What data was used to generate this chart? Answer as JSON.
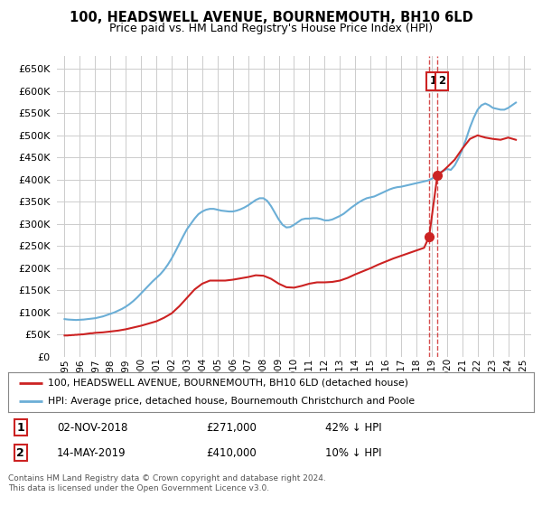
{
  "title": "100, HEADSWELL AVENUE, BOURNEMOUTH, BH10 6LD",
  "subtitle": "Price paid vs. HM Land Registry's House Price Index (HPI)",
  "legend1": "100, HEADSWELL AVENUE, BOURNEMOUTH, BH10 6LD (detached house)",
  "legend2": "HPI: Average price, detached house, Bournemouth Christchurch and Poole",
  "annotation1_date": "02-NOV-2018",
  "annotation1_price": "£271,000",
  "annotation1_hpi": "42% ↓ HPI",
  "annotation2_date": "14-MAY-2019",
  "annotation2_price": "£410,000",
  "annotation2_hpi": "10% ↓ HPI",
  "footer": "Contains HM Land Registry data © Crown copyright and database right 2024.\nThis data is licensed under the Open Government Licence v3.0.",
  "hpi_color": "#6baed6",
  "price_color": "#cc2222",
  "annotation_box_color": "#cc2222",
  "background_color": "#ffffff",
  "grid_color": "#cccccc",
  "ylim": [
    0,
    680000
  ],
  "yticks": [
    0,
    50000,
    100000,
    150000,
    200000,
    250000,
    300000,
    350000,
    400000,
    450000,
    500000,
    550000,
    600000,
    650000
  ],
  "xlabel_years": [
    "1995",
    "1996",
    "1997",
    "1998",
    "1999",
    "2000",
    "2001",
    "2002",
    "2003",
    "2004",
    "2005",
    "2006",
    "2007",
    "2008",
    "2009",
    "2010",
    "2011",
    "2012",
    "2013",
    "2014",
    "2015",
    "2016",
    "2017",
    "2018",
    "2019",
    "2020",
    "2021",
    "2022",
    "2023",
    "2024",
    "2025"
  ],
  "hpi_data_x": [
    1995.0,
    1995.25,
    1995.5,
    1995.75,
    1996.0,
    1996.25,
    1996.5,
    1996.75,
    1997.0,
    1997.25,
    1997.5,
    1997.75,
    1998.0,
    1998.25,
    1998.5,
    1998.75,
    1999.0,
    1999.25,
    1999.5,
    1999.75,
    2000.0,
    2000.25,
    2000.5,
    2000.75,
    2001.0,
    2001.25,
    2001.5,
    2001.75,
    2002.0,
    2002.25,
    2002.5,
    2002.75,
    2003.0,
    2003.25,
    2003.5,
    2003.75,
    2004.0,
    2004.25,
    2004.5,
    2004.75,
    2005.0,
    2005.25,
    2005.5,
    2005.75,
    2006.0,
    2006.25,
    2006.5,
    2006.75,
    2007.0,
    2007.25,
    2007.5,
    2007.75,
    2008.0,
    2008.25,
    2008.5,
    2008.75,
    2009.0,
    2009.25,
    2009.5,
    2009.75,
    2010.0,
    2010.25,
    2010.5,
    2010.75,
    2011.0,
    2011.25,
    2011.5,
    2011.75,
    2012.0,
    2012.25,
    2012.5,
    2012.75,
    2013.0,
    2013.25,
    2013.5,
    2013.75,
    2014.0,
    2014.25,
    2014.5,
    2014.75,
    2015.0,
    2015.25,
    2015.5,
    2015.75,
    2016.0,
    2016.25,
    2016.5,
    2016.75,
    2017.0,
    2017.25,
    2017.5,
    2017.75,
    2018.0,
    2018.25,
    2018.5,
    2018.75,
    2019.0,
    2019.25,
    2019.5,
    2019.75,
    2020.0,
    2020.25,
    2020.5,
    2020.75,
    2021.0,
    2021.25,
    2021.5,
    2021.75,
    2022.0,
    2022.25,
    2022.5,
    2022.75,
    2023.0,
    2023.25,
    2023.5,
    2023.75,
    2024.0,
    2024.25,
    2024.5
  ],
  "hpi_data_y": [
    85000,
    84000,
    83500,
    83000,
    83500,
    84000,
    85000,
    86000,
    87000,
    89000,
    91000,
    94000,
    97000,
    100000,
    104000,
    108000,
    113000,
    119000,
    126000,
    134000,
    143000,
    152000,
    161000,
    170000,
    178000,
    186000,
    196000,
    208000,
    222000,
    238000,
    255000,
    272000,
    288000,
    300000,
    312000,
    322000,
    328000,
    332000,
    334000,
    334000,
    332000,
    330000,
    329000,
    328000,
    328000,
    330000,
    333000,
    337000,
    342000,
    348000,
    354000,
    358000,
    358000,
    352000,
    340000,
    325000,
    310000,
    298000,
    292000,
    293000,
    298000,
    304000,
    310000,
    312000,
    312000,
    313000,
    313000,
    311000,
    308000,
    308000,
    310000,
    314000,
    318000,
    323000,
    330000,
    337000,
    343000,
    349000,
    354000,
    358000,
    360000,
    362000,
    366000,
    370000,
    374000,
    378000,
    381000,
    383000,
    384000,
    386000,
    388000,
    390000,
    392000,
    394000,
    396000,
    398000,
    402000,
    408000,
    415000,
    420000,
    424000,
    422000,
    432000,
    448000,
    468000,
    492000,
    518000,
    540000,
    558000,
    568000,
    572000,
    568000,
    562000,
    560000,
    558000,
    558000,
    562000,
    568000,
    574000
  ],
  "price_data_x": [
    1995.0,
    1995.1,
    1995.2,
    1995.3,
    1995.4,
    1995.5,
    1995.6,
    1995.7,
    1995.8,
    1995.9,
    1996.0,
    1996.1,
    1996.2,
    1996.3,
    1996.4,
    1996.5,
    1996.6,
    1996.7,
    1996.8,
    1996.9,
    1997.0,
    1997.5,
    1998.0,
    1998.5,
    1999.0,
    1999.5,
    2000.0,
    2000.5,
    2001.0,
    2001.5,
    2002.0,
    2002.5,
    2003.0,
    2003.5,
    2004.0,
    2004.5,
    2005.0,
    2005.5,
    2006.0,
    2006.5,
    2007.0,
    2007.5,
    2008.0,
    2008.5,
    2009.0,
    2009.5,
    2010.0,
    2010.5,
    2011.0,
    2011.5,
    2012.0,
    2012.5,
    2013.0,
    2013.5,
    2014.0,
    2014.5,
    2015.0,
    2015.5,
    2016.0,
    2016.5,
    2017.0,
    2017.5,
    2018.0,
    2018.5,
    2018.83,
    2019.37,
    2019.75,
    2020.0,
    2020.5,
    2021.0,
    2021.5,
    2022.0,
    2022.5,
    2023.0,
    2023.5,
    2024.0,
    2024.5
  ],
  "price_data_y": [
    48000,
    48000,
    48000,
    48500,
    48500,
    49000,
    49000,
    49500,
    49500,
    50000,
    50000,
    50500,
    50500,
    51000,
    51500,
    52000,
    52500,
    53000,
    53000,
    53500,
    54000,
    55000,
    57000,
    59000,
    62000,
    66000,
    70000,
    75000,
    80000,
    88000,
    98000,
    114000,
    133000,
    152000,
    165000,
    172000,
    172000,
    172000,
    174000,
    177000,
    180000,
    184000,
    183000,
    176000,
    165000,
    157000,
    156000,
    160000,
    165000,
    168000,
    168000,
    169000,
    172000,
    178000,
    186000,
    193000,
    200000,
    208000,
    215000,
    222000,
    228000,
    234000,
    240000,
    246000,
    271000,
    410000,
    420000,
    428000,
    445000,
    470000,
    492000,
    500000,
    495000,
    492000,
    490000,
    495000,
    490000
  ],
  "sale1_x": 2018.83,
  "sale1_y": 271000,
  "sale2_x": 2019.37,
  "sale2_y": 410000,
  "xlim": [
    1994.5,
    2025.5
  ]
}
